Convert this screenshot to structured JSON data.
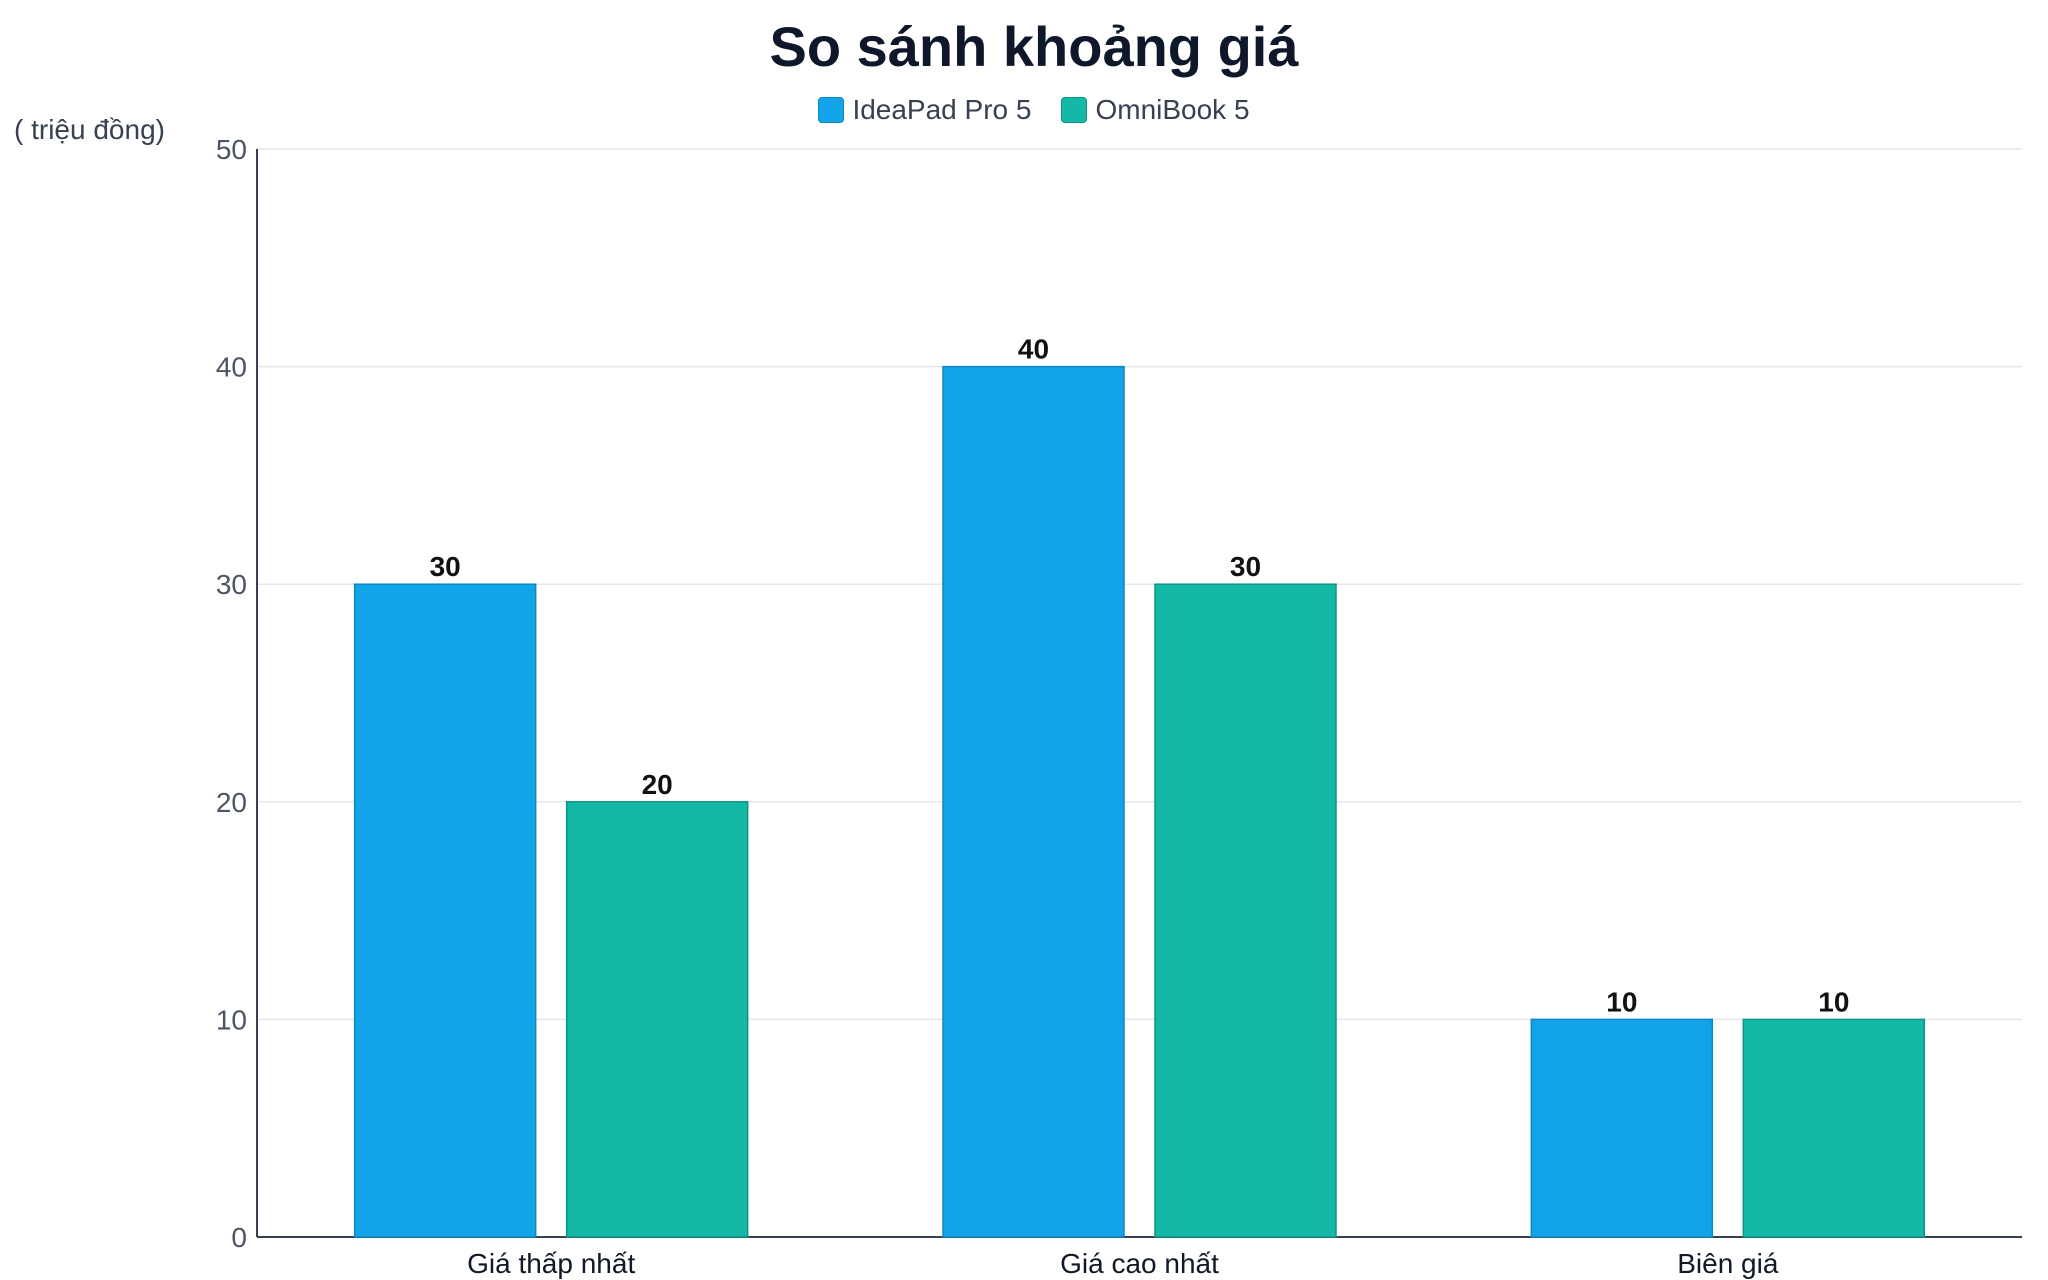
{
  "chart_data": {
    "type": "bar",
    "title": "So sánh khoảng giá",
    "ylabel": "( triệu đồng)",
    "xlabel": "",
    "categories": [
      "Giá thấp nhất",
      "Giá cao nhất",
      "Biên giá"
    ],
    "series": [
      {
        "name": "IdeaPad Pro 5",
        "values": [
          30,
          40,
          10
        ],
        "color": "#11a4e8",
        "stroke": "#0d87c4"
      },
      {
        "name": "OmniBook 5",
        "values": [
          20,
          30,
          10
        ],
        "color": "#14b8a6",
        "stroke": "#0f9384"
      }
    ],
    "ylim": [
      0,
      50
    ],
    "yticks": [
      0,
      10,
      20,
      30,
      40,
      50
    ],
    "grid": true,
    "legend": "top-center",
    "data_labels": true
  }
}
